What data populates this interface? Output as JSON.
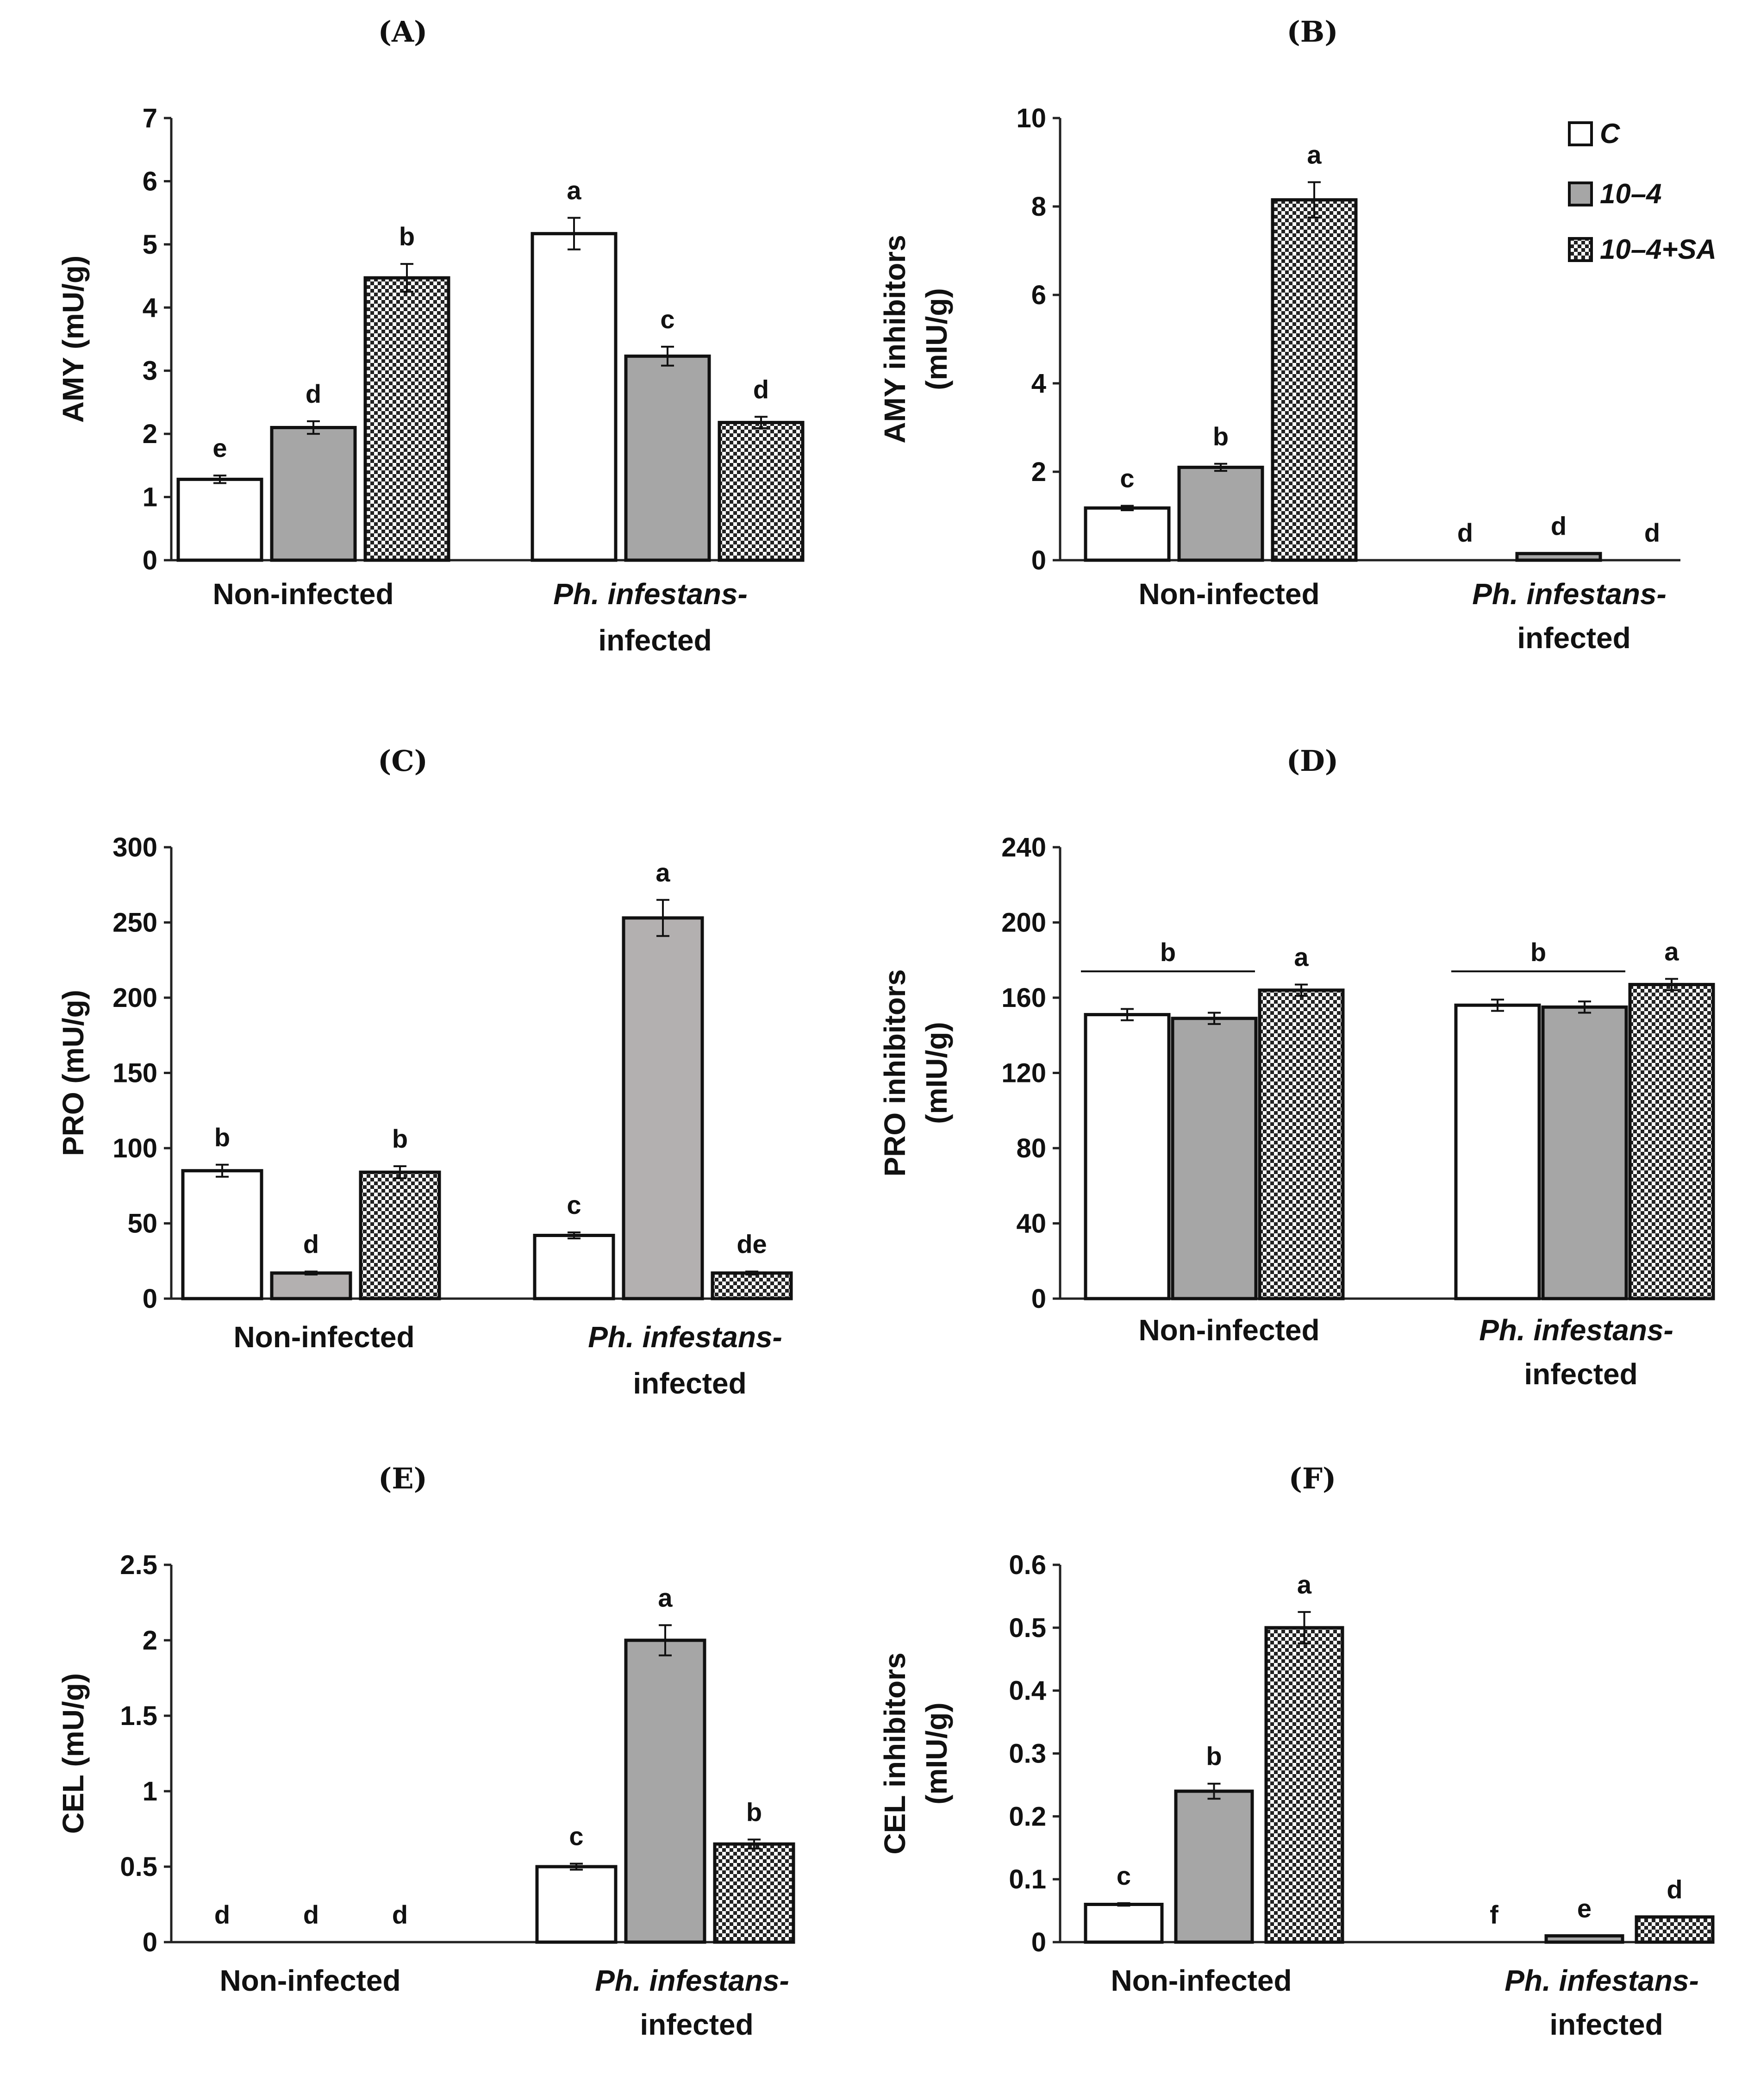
{
  "legend": [
    {
      "label": "C",
      "pattern": "white"
    },
    {
      "label": "10–4",
      "pattern": "gray"
    },
    {
      "label": "10–4+SA",
      "pattern": "checker"
    }
  ],
  "colors": {
    "white": "#ffffff",
    "gray": "#a6a6a6",
    "gray_light": "#b3b0b0",
    "checker_dark": "#222222",
    "checker_light": "#ffffff"
  },
  "chart_data": [
    {
      "panel": "(A)",
      "type": "bar",
      "ylabel": "AMY (mU/g)",
      "ylim": [
        0,
        7
      ],
      "yticks": [
        "0",
        "1",
        "2",
        "3",
        "4",
        "5",
        "6",
        "7"
      ],
      "groups": [
        "Non-infected",
        "Ph. infestans-infected"
      ],
      "series": [
        {
          "name": "C",
          "values": [
            1.28,
            5.17
          ],
          "errors": [
            0.06,
            0.25
          ],
          "letters": [
            "e",
            "a"
          ]
        },
        {
          "name": "10–4",
          "values": [
            2.1,
            3.23
          ],
          "errors": [
            0.1,
            0.15
          ],
          "letters": [
            "d",
            "c"
          ]
        },
        {
          "name": "10–4+SA",
          "values": [
            4.47,
            2.18
          ],
          "errors": [
            0.22,
            0.09
          ],
          "letters": [
            "b",
            "d"
          ]
        }
      ]
    },
    {
      "panel": "(B)",
      "type": "bar",
      "ylabel": "AMY inhibitors (mIU/g)",
      "ylim": [
        0,
        10
      ],
      "yticks": [
        "0",
        "2",
        "4",
        "6",
        "8",
        "10"
      ],
      "groups": [
        "Non-infected",
        "Ph. infestans-infected"
      ],
      "series": [
        {
          "name": "C",
          "values": [
            1.18,
            0
          ],
          "errors": [
            0.05,
            0
          ],
          "letters": [
            "c",
            "d"
          ]
        },
        {
          "name": "10–4",
          "values": [
            2.1,
            0.15
          ],
          "errors": [
            0.08,
            0
          ],
          "letters": [
            "b",
            "d"
          ]
        },
        {
          "name": "10–4+SA",
          "values": [
            8.15,
            0
          ],
          "errors": [
            0.4,
            0
          ],
          "letters": [
            "a",
            "d"
          ]
        }
      ]
    },
    {
      "panel": "(C)",
      "type": "bar",
      "ylabel": "PRO (mU/g)",
      "ylim": [
        0,
        300
      ],
      "yticks": [
        "0",
        "50",
        "100",
        "150",
        "200",
        "250",
        "300"
      ],
      "groups": [
        "Non-infected",
        "Ph. infestans-infected"
      ],
      "series": [
        {
          "name": "C",
          "values": [
            85,
            42
          ],
          "errors": [
            4,
            2
          ],
          "letters": [
            "b",
            "c"
          ]
        },
        {
          "name": "10–4",
          "values": [
            17,
            253
          ],
          "errors": [
            1,
            12
          ],
          "letters": [
            "d",
            "a"
          ]
        },
        {
          "name": "10–4+SA",
          "values": [
            84,
            17
          ],
          "errors": [
            4,
            1
          ],
          "letters": [
            "b",
            "de"
          ]
        }
      ]
    },
    {
      "panel": "(D)",
      "type": "bar",
      "ylabel": "PRO inhibitors (mIU/g)",
      "ylim": [
        0,
        240
      ],
      "yticks": [
        "0",
        "40",
        "80",
        "120",
        "160",
        "200",
        "240"
      ],
      "groups": [
        "Non-infected",
        "Ph. infestans-infected"
      ],
      "series": [
        {
          "name": "C",
          "values": [
            151,
            156
          ],
          "errors": [
            3,
            3
          ],
          "letters": [
            "",
            ""
          ]
        },
        {
          "name": "10–4",
          "values": [
            149,
            155
          ],
          "errors": [
            3,
            3
          ],
          "letters": [
            "",
            ""
          ]
        },
        {
          "name": "10–4+SA",
          "values": [
            164,
            167
          ],
          "errors": [
            3,
            3
          ],
          "letters": [
            "a",
            "a"
          ]
        }
      ],
      "group_brackets": [
        "b",
        "b"
      ]
    },
    {
      "panel": "(E)",
      "type": "bar",
      "ylabel": "CEL (mU/g)",
      "ylim": [
        0,
        2.5
      ],
      "yticks": [
        "0",
        "0.5",
        "1",
        "1.5",
        "2",
        "2.5"
      ],
      "groups": [
        "Non-infected",
        "Ph. infestans-infected"
      ],
      "series": [
        {
          "name": "C",
          "values": [
            0,
            0.5
          ],
          "errors": [
            0,
            0.02
          ],
          "letters": [
            "d",
            "c"
          ]
        },
        {
          "name": "10–4",
          "values": [
            0,
            2.0
          ],
          "errors": [
            0,
            0.1
          ],
          "letters": [
            "d",
            "a"
          ]
        },
        {
          "name": "10–4+SA",
          "values": [
            0,
            0.65
          ],
          "errors": [
            0,
            0.03
          ],
          "letters": [
            "d",
            "b"
          ]
        }
      ]
    },
    {
      "panel": "(F)",
      "type": "bar",
      "ylabel": "CEL inhibitors (mIU/g)",
      "ylim": [
        0,
        0.6
      ],
      "yticks": [
        "0",
        "0.1",
        "0.2",
        "0.3",
        "0.4",
        "0.5",
        "0.6"
      ],
      "groups": [
        "Non-infected",
        "Ph. infestans-infected"
      ],
      "series": [
        {
          "name": "C",
          "values": [
            0.06,
            0
          ],
          "errors": [
            0.002,
            0
          ],
          "letters": [
            "c",
            "f"
          ]
        },
        {
          "name": "10–4",
          "values": [
            0.24,
            0.01
          ],
          "errors": [
            0.012,
            0
          ],
          "letters": [
            "b",
            "e"
          ]
        },
        {
          "name": "10–4+SA",
          "values": [
            0.5,
            0.04
          ],
          "errors": [
            0.025,
            0
          ],
          "letters": [
            "a",
            "d"
          ]
        }
      ]
    }
  ]
}
